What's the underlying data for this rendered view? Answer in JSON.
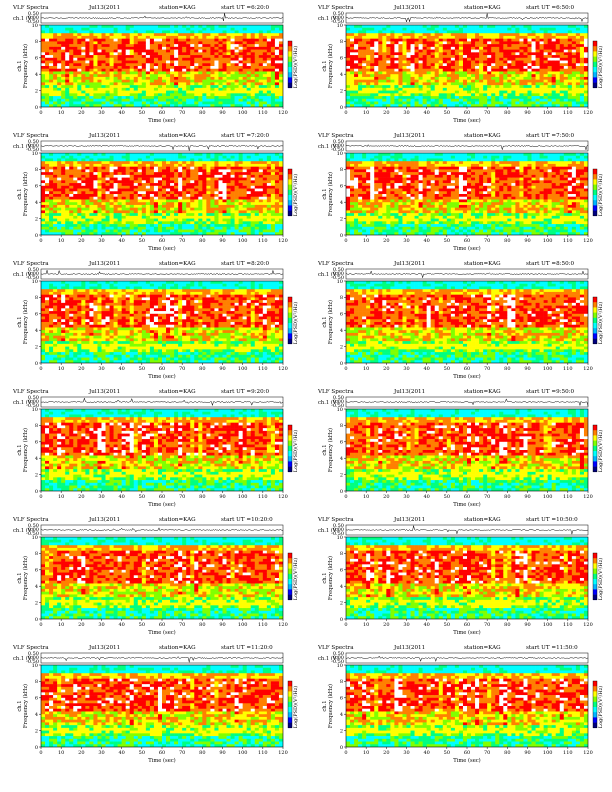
{
  "chart_data": [
    {
      "type": "heatmap",
      "title": "VLF Spectra",
      "date": "Jul13(2011",
      "station": "station=KAG",
      "start_label": "start  UT =6:20:0",
      "xlabel": "Time  (sec)",
      "ylabel": "Frequency  (kHz)",
      "ch_label": "ch.1",
      "ch_axis_label": "ch.1 (V)",
      "cb_label": "Log(PSD)(V²/Hz)",
      "ch_ticks": [
        "0.50",
        "0.00",
        "-0.50"
      ],
      "xticks": [
        0,
        10,
        20,
        30,
        40,
        50,
        60,
        70,
        80,
        90,
        100,
        110,
        120
      ],
      "yticks": [
        0,
        2,
        4,
        6,
        8,
        10
      ],
      "xlim": [
        0,
        120
      ],
      "ylim": [
        0,
        10
      ]
    },
    {
      "type": "heatmap",
      "title": "VLF Spectra",
      "date": "Jul13(2011",
      "station": "station=KAG",
      "start_label": "start  UT =6:50:0",
      "xlabel": "Time  (sec)",
      "ylabel": "Frequency  (kHz)",
      "ch_label": "ch.1",
      "ch_axis_label": "ch.1 (V)",
      "cb_label": "Log(PSD)(V²/Hz)",
      "ch_ticks": [
        "0.50",
        "0.00",
        "-0.50"
      ],
      "xticks": [
        0,
        10,
        20,
        30,
        40,
        50,
        60,
        70,
        80,
        90,
        100,
        110,
        120
      ],
      "yticks": [
        0,
        2,
        4,
        6,
        8,
        10
      ],
      "xlim": [
        0,
        120
      ],
      "ylim": [
        0,
        10
      ]
    },
    {
      "type": "heatmap",
      "title": "VLF Spectra",
      "date": "Jul13(2011",
      "station": "station=KAG",
      "start_label": "start  UT =7:20:0",
      "xlabel": "Time  (sec)",
      "ylabel": "Frequency  (kHz)",
      "ch_label": "ch.1",
      "ch_axis_label": "ch.1 (V)",
      "cb_label": "Log(PSD)(V²/Hz)",
      "ch_ticks": [
        "0.50",
        "0.00",
        "-0.50"
      ],
      "xticks": [
        0,
        10,
        20,
        30,
        40,
        50,
        60,
        70,
        80,
        90,
        100,
        110,
        120
      ],
      "yticks": [
        0,
        2,
        4,
        6,
        8,
        10
      ],
      "xlim": [
        0,
        120
      ],
      "ylim": [
        0,
        10
      ]
    },
    {
      "type": "heatmap",
      "title": "VLF Spectra",
      "date": "Jul13(2011",
      "station": "station=KAG",
      "start_label": "start  UT =7:50:0",
      "xlabel": "Time  (sec)",
      "ylabel": "Frequency  (kHz)",
      "ch_label": "ch.1",
      "ch_axis_label": "ch.1 (V)",
      "cb_label": "Log(PSD)(V²/Hz)",
      "ch_ticks": [
        "0.50",
        "0.00",
        "-0.50"
      ],
      "xticks": [
        0,
        10,
        20,
        30,
        40,
        50,
        60,
        70,
        80,
        90,
        100,
        110,
        120
      ],
      "yticks": [
        0,
        2,
        4,
        6,
        8,
        10
      ],
      "xlim": [
        0,
        120
      ],
      "ylim": [
        0,
        10
      ]
    },
    {
      "type": "heatmap",
      "title": "VLF Spectra",
      "date": "Jul13(2011",
      "station": "station=KAG",
      "start_label": "start  UT =8:20:0",
      "xlabel": "Time  (sec)",
      "ylabel": "Frequency  (kHz)",
      "ch_label": "ch.1",
      "ch_axis_label": "ch.1 (V)",
      "cb_label": "Log(PSD)(V²/Hz)",
      "ch_ticks": [
        "0.50",
        "0.00",
        "-0.50"
      ],
      "xticks": [
        0,
        10,
        20,
        30,
        40,
        50,
        60,
        70,
        80,
        90,
        100,
        110,
        120
      ],
      "yticks": [
        0,
        2,
        4,
        6,
        8,
        10
      ],
      "xlim": [
        0,
        120
      ],
      "ylim": [
        0,
        10
      ]
    },
    {
      "type": "heatmap",
      "title": "VLF Spectra",
      "date": "Jul13(2011",
      "station": "station=KAG",
      "start_label": "start  UT =8:50:0",
      "xlabel": "Time  (sec)",
      "ylabel": "Frequency  (kHz)",
      "ch_label": "ch.1",
      "ch_axis_label": "ch.1 (V)",
      "cb_label": "Log(PSD)(V²/Hz)",
      "ch_ticks": [
        "0.50",
        "0.00",
        "-0.50"
      ],
      "xticks": [
        0,
        10,
        20,
        30,
        40,
        50,
        60,
        70,
        80,
        90,
        100,
        110,
        120
      ],
      "yticks": [
        0,
        2,
        4,
        6,
        8,
        10
      ],
      "xlim": [
        0,
        120
      ],
      "ylim": [
        0,
        10
      ]
    },
    {
      "type": "heatmap",
      "title": "VLF Spectra",
      "date": "Jul13(2011",
      "station": "station=KAG",
      "start_label": "start  UT =9:20:0",
      "xlabel": "Time  (sec)",
      "ylabel": "Frequency  (kHz)",
      "ch_label": "ch.1",
      "ch_axis_label": "ch.1 (V)",
      "cb_label": "Log(PSD)(V²/Hz)",
      "ch_ticks": [
        "0.50",
        "0.00",
        "-0.50"
      ],
      "xticks": [
        0,
        10,
        20,
        30,
        40,
        50,
        60,
        70,
        80,
        90,
        100,
        110,
        120
      ],
      "yticks": [
        0,
        2,
        4,
        6,
        8,
        10
      ],
      "xlim": [
        0,
        120
      ],
      "ylim": [
        0,
        10
      ]
    },
    {
      "type": "heatmap",
      "title": "VLF Spectra",
      "date": "Jul13(2011",
      "station": "station=KAG",
      "start_label": "start  UT =9:50:0",
      "xlabel": "Time  (sec)",
      "ylabel": "Frequency  (kHz)",
      "ch_label": "ch.1",
      "ch_axis_label": "ch.1 (V)",
      "cb_label": "Log(PSD)(V²/Hz)",
      "ch_ticks": [
        "0.50",
        "0.00",
        "-0.50"
      ],
      "xticks": [
        0,
        10,
        20,
        30,
        40,
        50,
        60,
        70,
        80,
        90,
        100,
        110,
        120
      ],
      "yticks": [
        0,
        2,
        4,
        6,
        8,
        10
      ],
      "xlim": [
        0,
        120
      ],
      "ylim": [
        0,
        10
      ]
    },
    {
      "type": "heatmap",
      "title": "VLF Spectra",
      "date": "Jul13(2011",
      "station": "station=KAG",
      "start_label": "start  UT =10:20:0",
      "xlabel": "Time  (sec)",
      "ylabel": "Frequency  (kHz)",
      "ch_label": "ch.1",
      "ch_axis_label": "ch.1 (V)",
      "cb_label": "Log(PSD)(V²/Hz)",
      "ch_ticks": [
        "0.50",
        "0.00",
        "-0.50"
      ],
      "xticks": [
        0,
        10,
        20,
        30,
        40,
        50,
        60,
        70,
        80,
        90,
        100,
        110,
        120
      ],
      "yticks": [
        0,
        2,
        4,
        6,
        8,
        10
      ],
      "xlim": [
        0,
        120
      ],
      "ylim": [
        0,
        10
      ]
    },
    {
      "type": "heatmap",
      "title": "VLF Spectra",
      "date": "Jul13(2011",
      "station": "station=KAG",
      "start_label": "start  UT =10:50:0",
      "xlabel": "Time  (sec)",
      "ylabel": "Frequency  (kHz)",
      "ch_label": "ch.1",
      "ch_axis_label": "ch.1 (V)",
      "cb_label": "Log(PSD)(V²/Hz)",
      "ch_ticks": [
        "0.50",
        "0.00",
        "-0.50"
      ],
      "xticks": [
        0,
        10,
        20,
        30,
        40,
        50,
        60,
        70,
        80,
        90,
        100,
        110,
        120
      ],
      "yticks": [
        0,
        2,
        4,
        6,
        8,
        10
      ],
      "xlim": [
        0,
        120
      ],
      "ylim": [
        0,
        10
      ]
    },
    {
      "type": "heatmap",
      "title": "VLF Spectra",
      "date": "Jul13(2011",
      "station": "station=KAG",
      "start_label": "start  UT =11:20:0",
      "xlabel": "Time  (sec)",
      "ylabel": "Frequency  (kHz)",
      "ch_label": "ch.1",
      "ch_axis_label": "ch.1 (V)",
      "cb_label": "Log(PSD)(V²/Hz)",
      "ch_ticks": [
        "0.50",
        "0.00",
        "-0.50"
      ],
      "xticks": [
        0,
        10,
        20,
        30,
        40,
        50,
        60,
        70,
        80,
        90,
        100,
        110,
        120
      ],
      "yticks": [
        0,
        2,
        4,
        6,
        8,
        10
      ],
      "xlim": [
        0,
        120
      ],
      "ylim": [
        0,
        10
      ]
    },
    {
      "type": "heatmap",
      "title": "VLF Spectra",
      "date": "Jul13(2011",
      "station": "station=KAG",
      "start_label": "start  UT =11:50:0",
      "xlabel": "Time  (sec)",
      "ylabel": "Frequency  (kHz)",
      "ch_label": "ch.1",
      "ch_axis_label": "ch.1 (V)",
      "cb_label": "Log(PSD)(V²/Hz)",
      "ch_ticks": [
        "0.50",
        "0.00",
        "-0.50"
      ],
      "xticks": [
        0,
        10,
        20,
        30,
        40,
        50,
        60,
        70,
        80,
        90,
        100,
        110,
        120
      ],
      "yticks": [
        0,
        2,
        4,
        6,
        8,
        10
      ],
      "xlim": [
        0,
        120
      ],
      "ylim": [
        0,
        10
      ]
    }
  ],
  "colors": {
    "spectrogram_scale": [
      "#000080",
      "#0000ff",
      "#00b4ff",
      "#00ffff",
      "#00ff80",
      "#80ff00",
      "#ffff00",
      "#ff8000",
      "#ff0000",
      "#ffffff"
    ],
    "waveform": "#000000",
    "top_band": "#00e0c0"
  }
}
